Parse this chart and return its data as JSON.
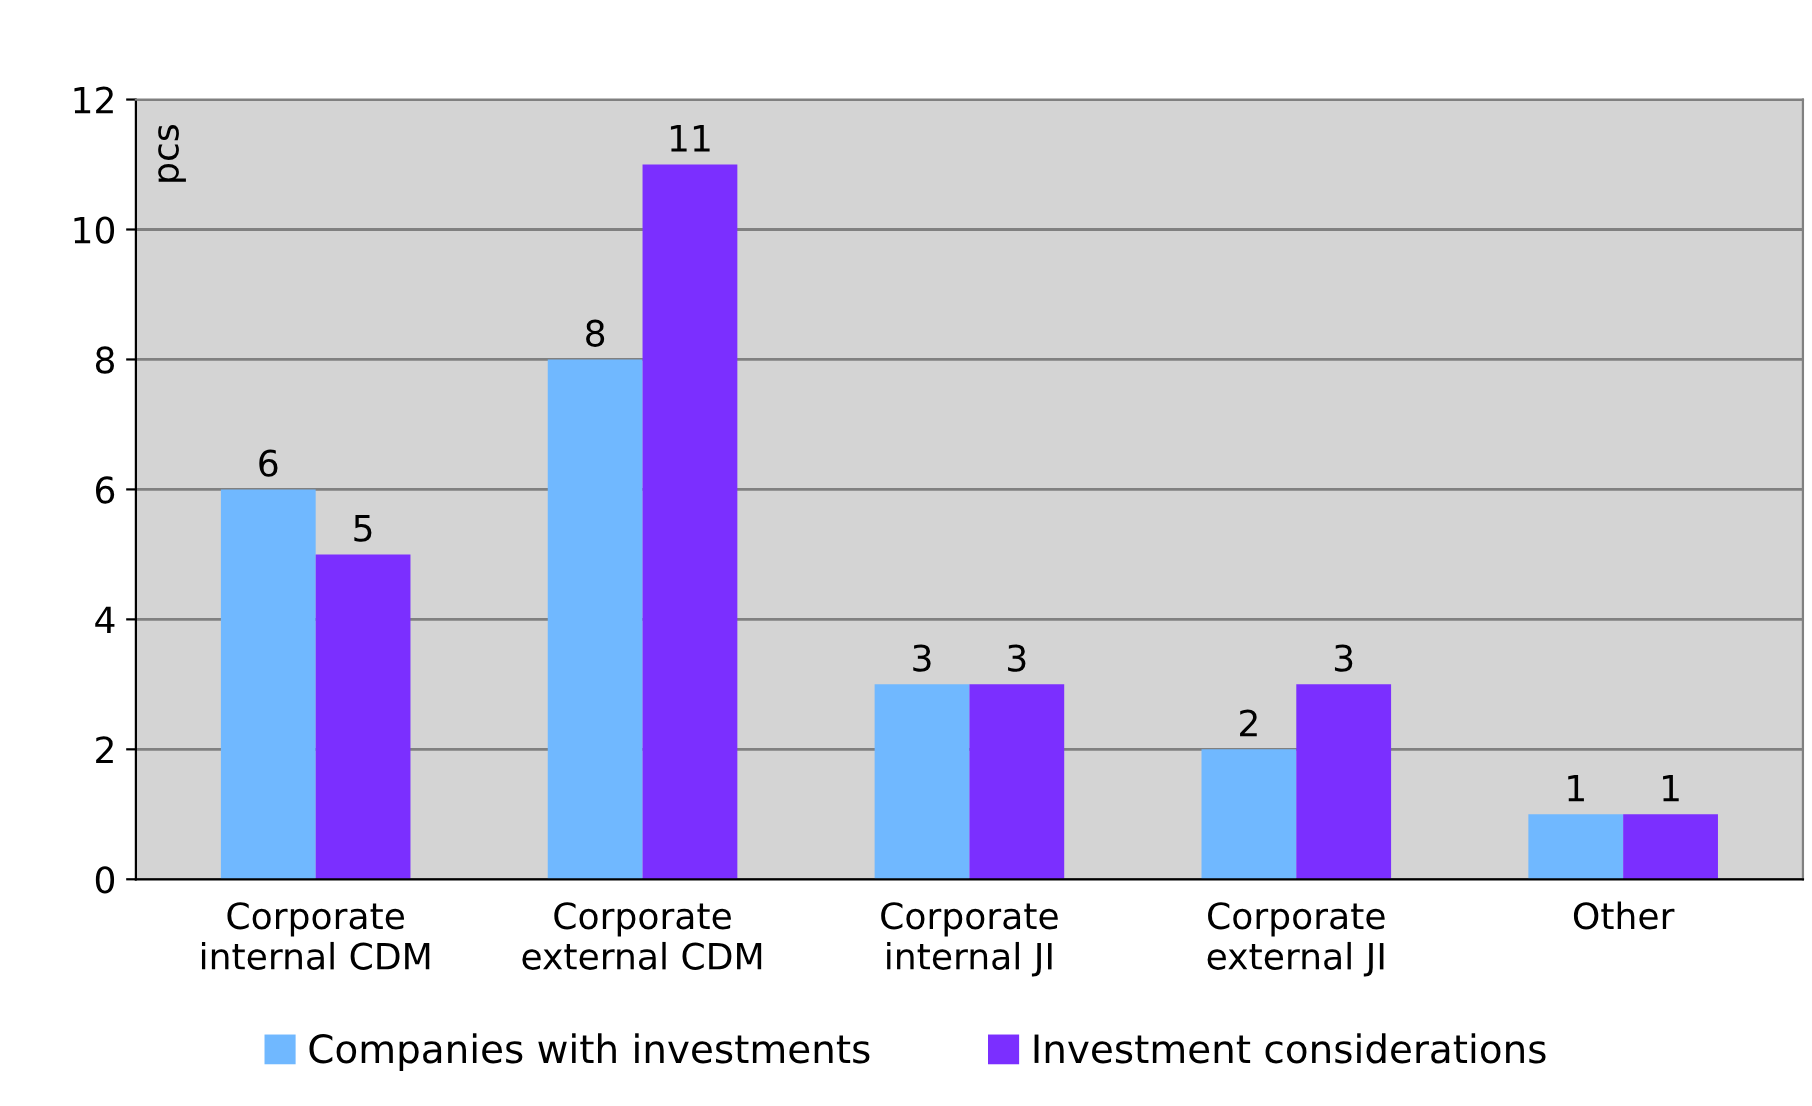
{
  "chart_data": {
    "type": "bar",
    "ylabel": "pcs",
    "categories": [
      "Corporate\ninternal CDM",
      "Corporate\nexternal CDM",
      "Corporate\ninternal JI",
      "Corporate\nexternal JI",
      "Other"
    ],
    "series": [
      {
        "name": "Companies with investments",
        "color": "#70b8ff",
        "values": [
          6,
          8,
          3,
          2,
          1
        ]
      },
      {
        "name": "Investment considerations",
        "color": "#7b2fff",
        "values": [
          5,
          11,
          3,
          3,
          1
        ]
      }
    ],
    "ylim": [
      0,
      12
    ],
    "yticks": [
      0,
      2,
      4,
      6,
      8,
      10,
      12
    ],
    "grid": "y",
    "legend": "bottom",
    "data_labels": true
  }
}
